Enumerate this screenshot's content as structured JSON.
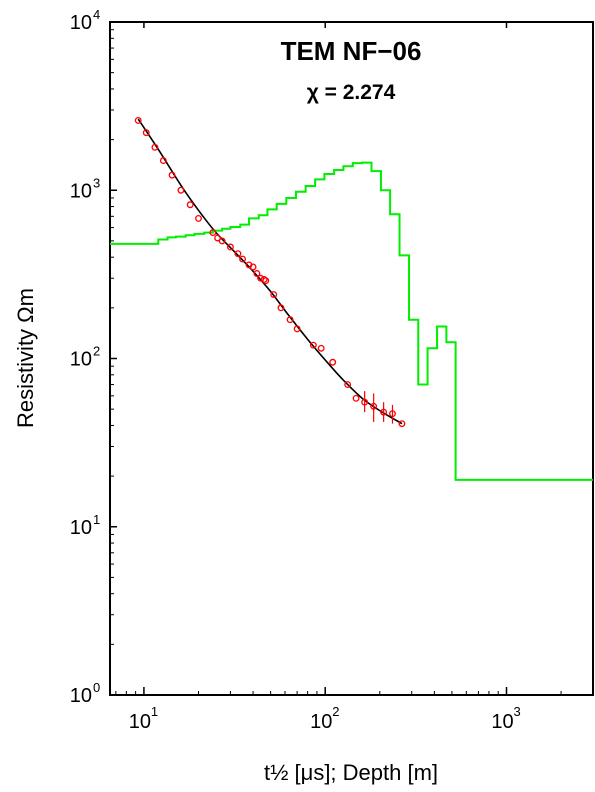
{
  "chart_data": {
    "type": "scatter",
    "title": "TEM NF−06",
    "subtitle": "χ = 2.274",
    "xlabel": "t½ [μs]; Depth [m]",
    "ylabel": "Resistivity Ωm",
    "x_scale": "log",
    "y_scale": "log",
    "xlim": [
      6.5,
      3000
    ],
    "ylim": [
      1,
      10000
    ],
    "x_ticks": [
      {
        "base": "10",
        "exp": "1",
        "value": 10
      },
      {
        "base": "10",
        "exp": "2",
        "value": 100
      },
      {
        "base": "10",
        "exp": "3",
        "value": 1000
      }
    ],
    "y_ticks": [
      {
        "base": "10",
        "exp": "0",
        "value": 1
      },
      {
        "base": "10",
        "exp": "1",
        "value": 10
      },
      {
        "base": "10",
        "exp": "2",
        "value": 100
      },
      {
        "base": "10",
        "exp": "3",
        "value": 1000
      },
      {
        "base": "10",
        "exp": "4",
        "value": 10000
      }
    ],
    "series": [
      {
        "kind": "points",
        "color": "#ff0000",
        "points": [
          {
            "x": 9.3,
            "y": 2600
          },
          {
            "x": 10.3,
            "y": 2200
          },
          {
            "x": 11.5,
            "y": 1800
          },
          {
            "x": 12.8,
            "y": 1500
          },
          {
            "x": 14.3,
            "y": 1230
          },
          {
            "x": 16.0,
            "y": 1000
          },
          {
            "x": 18.0,
            "y": 820
          },
          {
            "x": 20.0,
            "y": 680
          },
          {
            "x": 24.0,
            "y": 560
          },
          {
            "x": 25.5,
            "y": 520
          },
          {
            "x": 27.0,
            "y": 500
          },
          {
            "x": 30.0,
            "y": 460
          },
          {
            "x": 33.0,
            "y": 420
          },
          {
            "x": 35.0,
            "y": 390
          },
          {
            "x": 38.0,
            "y": 360
          },
          {
            "x": 40.0,
            "y": 350
          },
          {
            "x": 42.0,
            "y": 320
          },
          {
            "x": 44.0,
            "y": 300
          },
          {
            "x": 46.0,
            "y": 295
          },
          {
            "x": 47.0,
            "y": 290
          },
          {
            "x": 52.0,
            "y": 240
          },
          {
            "x": 57.0,
            "y": 200
          },
          {
            "x": 64.0,
            "y": 170
          },
          {
            "x": 70.0,
            "y": 150
          },
          {
            "x": 86.0,
            "y": 120
          },
          {
            "x": 95.0,
            "y": 115
          },
          {
            "x": 110.0,
            "y": 95
          },
          {
            "x": 133.0,
            "y": 70
          },
          {
            "x": 148.0,
            "y": 58
          },
          {
            "x": 165.0,
            "y": 55,
            "err": [
              48,
              64
            ]
          },
          {
            "x": 185.0,
            "y": 52,
            "err": [
              42,
              62
            ]
          },
          {
            "x": 210.0,
            "y": 48,
            "err": [
              42,
              55
            ]
          },
          {
            "x": 235.0,
            "y": 47,
            "err": [
              41,
              53
            ]
          },
          {
            "x": 265.0,
            "y": 41
          }
        ]
      },
      {
        "kind": "fit-curve",
        "color": "#000000",
        "points": [
          {
            "x": 9.3,
            "y": 2650
          },
          {
            "x": 12.0,
            "y": 1750
          },
          {
            "x": 16.0,
            "y": 1070
          },
          {
            "x": 20.0,
            "y": 760
          },
          {
            "x": 25.0,
            "y": 560
          },
          {
            "x": 32.0,
            "y": 425
          },
          {
            "x": 40.0,
            "y": 330
          },
          {
            "x": 50.0,
            "y": 250
          },
          {
            "x": 63.0,
            "y": 180
          },
          {
            "x": 80.0,
            "y": 130
          },
          {
            "x": 100.0,
            "y": 98
          },
          {
            "x": 125.0,
            "y": 75
          },
          {
            "x": 160.0,
            "y": 58
          },
          {
            "x": 200.0,
            "y": 49
          },
          {
            "x": 265.0,
            "y": 41
          }
        ]
      },
      {
        "kind": "step-model",
        "color": "#00ee00",
        "depth_boundaries": [
          12,
          13.5,
          15,
          17,
          19,
          21.5,
          24,
          27,
          30,
          34,
          38,
          43,
          48,
          54,
          61,
          69,
          78,
          88,
          99,
          112,
          126,
          142,
          160,
          180,
          203,
          228,
          257,
          290,
          326,
          367,
          414,
          466,
          524
        ],
        "resistivity": [
          480,
          510,
          525,
          530,
          540,
          550,
          560,
          575,
          590,
          605,
          625,
          680,
          710,
          770,
          830,
          900,
          980,
          1060,
          1160,
          1250,
          1320,
          1390,
          1450,
          1460,
          1300,
          1000,
          720,
          410,
          170,
          70,
          115,
          155,
          125,
          19
        ],
        "x_start": 6.5,
        "x_end": 3000
      }
    ],
    "grid": false,
    "legend": "none"
  }
}
